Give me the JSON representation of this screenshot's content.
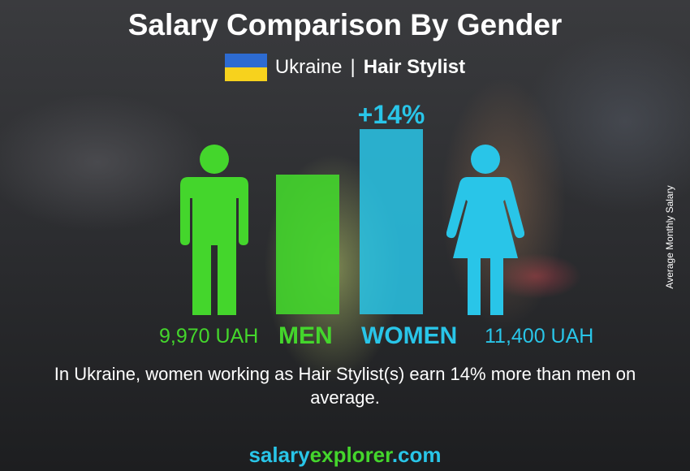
{
  "title": "Salary Comparison By Gender",
  "country": "Ukraine",
  "separator": "|",
  "job": "Hair Stylist",
  "side_label": "Average Monthly Salary",
  "description": "In Ukraine, women working as Hair Stylist(s) earn 14% more than men on average.",
  "brand": {
    "part1": "salary",
    "part2": "explorer",
    "part3": ".com"
  },
  "colors": {
    "men": "#44d62c",
    "women": "#29c5e8",
    "flag_top": "#2d6bd1",
    "flag_bottom": "#f7d21d"
  },
  "icons": {
    "men": "male-figure-icon",
    "women": "female-figure-icon",
    "flag": "ukraine-flag-icon"
  },
  "chart_data": {
    "type": "bar",
    "categories": [
      "MEN",
      "WOMEN"
    ],
    "values": [
      9970,
      11400
    ],
    "value_labels": [
      "9,970 UAH",
      "11,400 UAH"
    ],
    "unit": "UAH",
    "difference_label": "+14%",
    "ylabel": "Average Monthly Salary"
  }
}
